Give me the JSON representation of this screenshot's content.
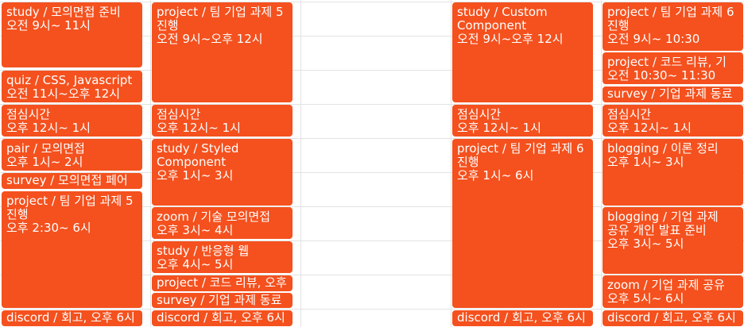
{
  "calendar": {
    "event_color": "#f4511e",
    "columns": [
      {
        "events": [
          {
            "title": "study / 모의면접 준비",
            "time": "오전 9시~ 11시"
          },
          {
            "title": "quiz / CSS, Javascript",
            "time": "오전 11시~오후 12시"
          },
          {
            "title": "점심시간",
            "time": "오후 12시~ 1시"
          },
          {
            "title": "pair / 모의면접",
            "time": "오후 1시~ 2시"
          },
          {
            "title": "survey / 모의면접 페어",
            "time": ""
          },
          {
            "title": "project / 팀 기업 과제 5 진행",
            "time": "오후 2:30~ 6시"
          },
          {
            "title": "discord / 회고, 오후 6시",
            "time": ""
          }
        ]
      },
      {
        "events": [
          {
            "title": "project / 팀 기업 과제 5 진행",
            "time": "오전 9시~오후 12시"
          },
          {
            "title": "점심시간",
            "time": "오후 12시~ 1시"
          },
          {
            "title": "study / Styled Component",
            "time": "오후 1시~ 3시"
          },
          {
            "title": "zoom / 기술 모의면접",
            "time": "오후 3시~ 4시"
          },
          {
            "title": "study / 반응형 웹",
            "time": "오후 4시~ 5시"
          },
          {
            "title": "project / 코드 리뷰, 오후",
            "time": ""
          },
          {
            "title": "survey / 기업 과제 동료",
            "time": ""
          },
          {
            "title": "discord / 회고, 오후 6시",
            "time": ""
          }
        ]
      },
      {
        "events": [
          {
            "title": "study / Custom Component",
            "time": "오전 9시~오후 12시"
          },
          {
            "title": "점심시간",
            "time": "오후 12시~ 1시"
          },
          {
            "title": "project / 팀 기업 과제 6 진행",
            "time": "오후 1시~ 6시"
          },
          {
            "title": "discord / 회고, 오후 6시",
            "time": ""
          }
        ]
      },
      {
        "events": [
          {
            "title": "project / 팀 기업 과제 6 진행",
            "time": "오전 9시~ 10:30"
          },
          {
            "title": "project / 코드 리뷰, 기",
            "time": "오전 10:30~ 11:30"
          },
          {
            "title": "survey / 기업 과제 동료",
            "time": ""
          },
          {
            "title": "점심시간",
            "time": "오후 12시~ 1시"
          },
          {
            "title": "blogging / 이론 정리",
            "time": "오후 1시~ 3시"
          },
          {
            "title": "blogging / 기업 과제 공유 개인 발표 준비",
            "time": "오후 3시~ 5시"
          },
          {
            "title": "zoom / 기업 과제 공유",
            "time": "오후 5시~ 6시"
          },
          {
            "title": "discord / 회고, 오후 6시",
            "time": ""
          }
        ]
      }
    ]
  }
}
